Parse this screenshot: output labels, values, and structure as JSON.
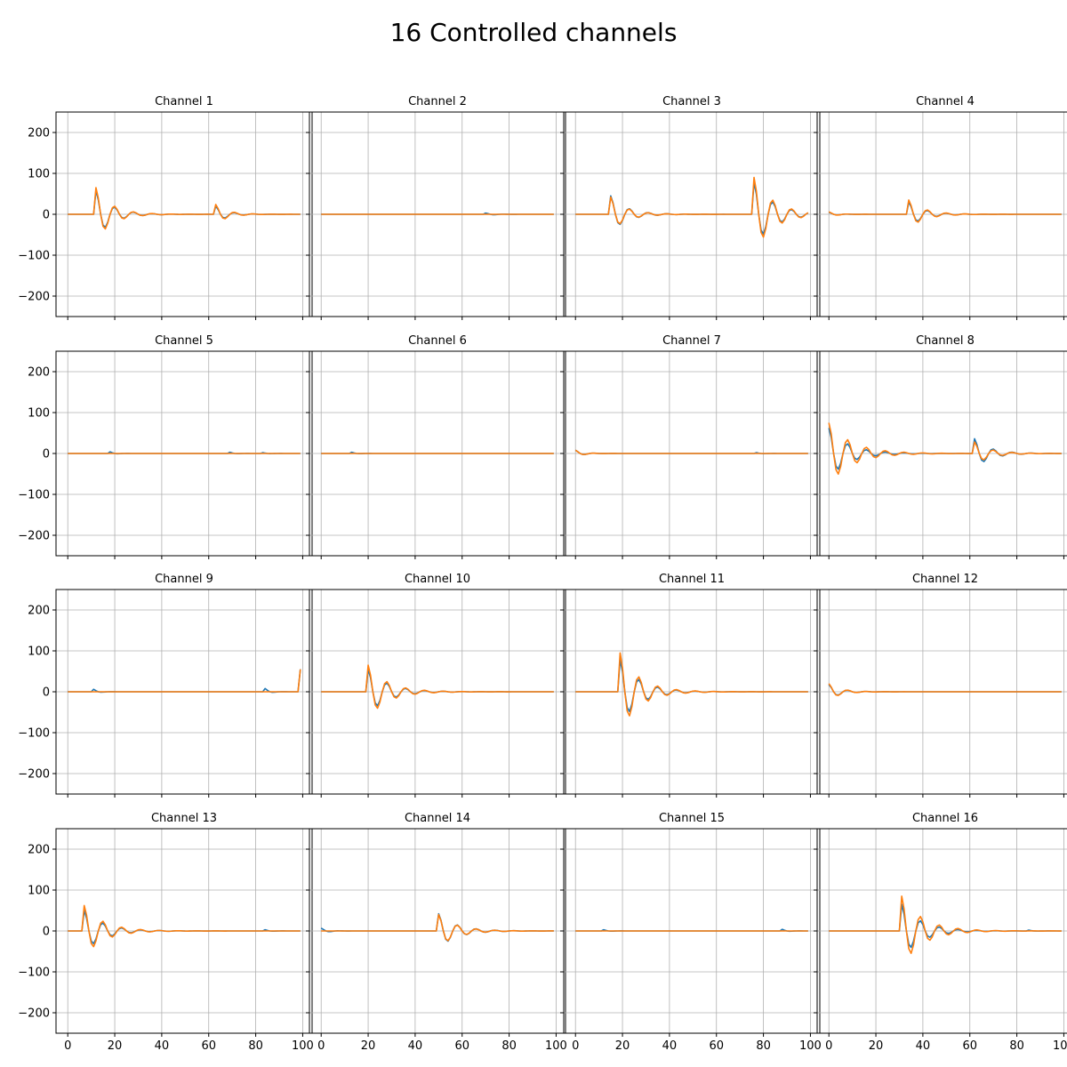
{
  "title": "16 Controlled channels",
  "colors": {
    "series_blue": "#1f77b4",
    "series_orange": "#ff7f0e",
    "grid": "#b0b0b0",
    "axes": "#000000"
  },
  "chart_data": {
    "type": "line",
    "layout": "4x4 small multiples, shared x and y axes",
    "grid": true,
    "xlim": [
      -5,
      104
    ],
    "ylim": [
      -250,
      250
    ],
    "xticks": [
      0,
      20,
      40,
      60,
      80,
      100
    ],
    "yticks": [
      -200,
      -100,
      0,
      100,
      200
    ],
    "x_step": 1,
    "n_points": 100,
    "panels": [
      {
        "title": "Channel 1",
        "blue_pulses": [
          {
            "t": 12,
            "amp": 58,
            "decay": 0.15
          },
          {
            "t": 63,
            "amp": 20,
            "decay": 0.2
          }
        ],
        "orange_pulses": [
          {
            "t": 12,
            "amp": 65,
            "decay": 0.15
          },
          {
            "t": 63,
            "amp": 24,
            "decay": 0.2
          }
        ]
      },
      {
        "title": "Channel 2",
        "blue_pulses": [
          {
            "t": 70,
            "amp": 3,
            "decay": 0.3
          }
        ],
        "orange_pulses": []
      },
      {
        "title": "Channel 3",
        "blue_pulses": [
          {
            "t": 15,
            "amp": 45,
            "decay": 0.15
          },
          {
            "t": 76,
            "amp": 78,
            "decay": 0.12
          }
        ],
        "orange_pulses": [
          {
            "t": 15,
            "amp": 42,
            "decay": 0.15
          },
          {
            "t": 76,
            "amp": 90,
            "decay": 0.12
          }
        ]
      },
      {
        "title": "Channel 4",
        "blue_pulses": [
          {
            "t": 0,
            "amp": 5,
            "decay": 0.3
          },
          {
            "t": 34,
            "amp": 30,
            "decay": 0.15
          }
        ],
        "orange_pulses": [
          {
            "t": 0,
            "amp": 6,
            "decay": 0.3
          },
          {
            "t": 34,
            "amp": 35,
            "decay": 0.15
          }
        ]
      },
      {
        "title": "Channel 5",
        "blue_pulses": [
          {
            "t": 18,
            "amp": 4,
            "decay": 0.5
          },
          {
            "t": 69,
            "amp": 3,
            "decay": 0.5
          },
          {
            "t": 83,
            "amp": 2,
            "decay": 0.5
          }
        ],
        "orange_pulses": []
      },
      {
        "title": "Channel 6",
        "blue_pulses": [
          {
            "t": 13,
            "amp": 3,
            "decay": 0.5
          }
        ],
        "orange_pulses": []
      },
      {
        "title": "Channel 7",
        "blue_pulses": [
          {
            "t": 0,
            "amp": 8,
            "decay": 0.3
          },
          {
            "t": 77,
            "amp": 2,
            "decay": 0.5
          }
        ],
        "orange_pulses": [
          {
            "t": 0,
            "amp": 8,
            "decay": 0.3
          }
        ]
      },
      {
        "title": "Channel 8",
        "blue_pulses": [
          {
            "t": 0,
            "amp": 62,
            "decay": 0.12
          },
          {
            "t": 62,
            "amp": 36,
            "decay": 0.15
          }
        ],
        "orange_pulses": [
          {
            "t": 0,
            "amp": 75,
            "decay": 0.1
          },
          {
            "t": 62,
            "amp": 28,
            "decay": 0.15
          }
        ]
      },
      {
        "title": "Channel 9",
        "blue_pulses": [
          {
            "t": 11,
            "amp": 6,
            "decay": 0.5
          },
          {
            "t": 84,
            "amp": 8,
            "decay": 0.5
          },
          {
            "t": 99,
            "amp": 55,
            "decay": 0.5
          }
        ],
        "orange_pulses": [
          {
            "t": 99,
            "amp": 55,
            "decay": 0.5
          }
        ]
      },
      {
        "title": "Channel 10",
        "blue_pulses": [
          {
            "t": 20,
            "amp": 55,
            "decay": 0.12
          }
        ],
        "orange_pulses": [
          {
            "t": 20,
            "amp": 65,
            "decay": 0.12
          }
        ]
      },
      {
        "title": "Channel 11",
        "blue_pulses": [
          {
            "t": 19,
            "amp": 78,
            "decay": 0.12
          }
        ],
        "orange_pulses": [
          {
            "t": 19,
            "amp": 95,
            "decay": 0.12
          }
        ]
      },
      {
        "title": "Channel 12",
        "blue_pulses": [
          {
            "t": 0,
            "amp": 18,
            "decay": 0.2
          }
        ],
        "orange_pulses": [
          {
            "t": 0,
            "amp": 20,
            "decay": 0.2
          }
        ]
      },
      {
        "title": "Channel 13",
        "blue_pulses": [
          {
            "t": 7,
            "amp": 50,
            "decay": 0.12
          },
          {
            "t": 84,
            "amp": 3,
            "decay": 0.5
          }
        ],
        "orange_pulses": [
          {
            "t": 7,
            "amp": 62,
            "decay": 0.12
          }
        ]
      },
      {
        "title": "Channel 14",
        "blue_pulses": [
          {
            "t": 0,
            "amp": 7,
            "decay": 0.4
          },
          {
            "t": 50,
            "amp": 42,
            "decay": 0.13
          }
        ],
        "orange_pulses": [
          {
            "t": 50,
            "amp": 40,
            "decay": 0.13
          }
        ]
      },
      {
        "title": "Channel 15",
        "blue_pulses": [
          {
            "t": 12,
            "amp": 3,
            "decay": 0.5
          },
          {
            "t": 88,
            "amp": 4,
            "decay": 0.5
          }
        ],
        "orange_pulses": []
      },
      {
        "title": "Channel 16",
        "blue_pulses": [
          {
            "t": 31,
            "amp": 65,
            "decay": 0.12
          },
          {
            "t": 85,
            "amp": 2,
            "decay": 0.5
          }
        ],
        "orange_pulses": [
          {
            "t": 31,
            "amp": 85,
            "decay": 0.11
          }
        ]
      }
    ]
  }
}
